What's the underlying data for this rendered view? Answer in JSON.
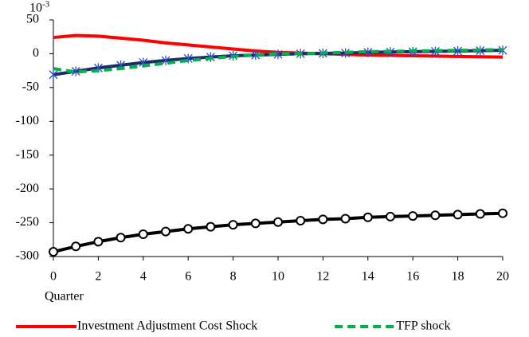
{
  "chart_data": {
    "type": "line",
    "y_multiplier": {
      "base": "10",
      "exponent": "-3"
    },
    "x_label": "Quarter",
    "x": [
      0,
      1,
      2,
      3,
      4,
      5,
      6,
      7,
      8,
      9,
      10,
      11,
      12,
      13,
      14,
      15,
      16,
      17,
      18,
      19,
      20
    ],
    "xlim": [
      0,
      20
    ],
    "xticks": [
      0,
      2,
      4,
      6,
      8,
      10,
      12,
      14,
      16,
      18,
      20
    ],
    "ylim": [
      -300,
      50
    ],
    "yticks": [
      -300,
      -250,
      -200,
      -150,
      -100,
      -50,
      0,
      50
    ],
    "grid": false,
    "legend": "bottom",
    "series": [
      {
        "color": "#000000",
        "dash": "solid",
        "marker": "circle",
        "values": [
          -293,
          -285,
          -278,
          -272,
          -267,
          -263,
          -259,
          -256,
          -253,
          -251,
          -249,
          -247,
          -245,
          -244,
          -242,
          -241,
          -240,
          -239,
          -238,
          -237,
          -236
        ]
      },
      {
        "name": "Investment Adjustment Cost Shock",
        "color": "#ff0000",
        "dash": "solid",
        "marker": "none",
        "values": [
          24,
          27,
          26,
          23,
          20,
          16,
          13,
          10,
          7,
          4,
          2,
          1,
          0,
          -1,
          -2,
          -2.5,
          -3,
          -3.5,
          -4,
          -4.5,
          -5
        ]
      },
      {
        "color": "#1f2a6b",
        "dash": "solid",
        "marker": "star",
        "values": [
          -31,
          -26,
          -21,
          -17,
          -13,
          -10,
          -7,
          -5,
          -3,
          -2,
          -1,
          0,
          0.5,
          1,
          2,
          2.5,
          3,
          3.5,
          4,
          4.5,
          5
        ]
      },
      {
        "name": "TFP shock",
        "color": "#00b050",
        "dash": "dashed",
        "marker": "none",
        "values": [
          -22,
          -27,
          -25,
          -22,
          -18,
          -14,
          -10,
          -7,
          -4,
          -2,
          0,
          0,
          1,
          2,
          3,
          3.5,
          4,
          4.5,
          5,
          5.5,
          6
        ]
      }
    ]
  }
}
